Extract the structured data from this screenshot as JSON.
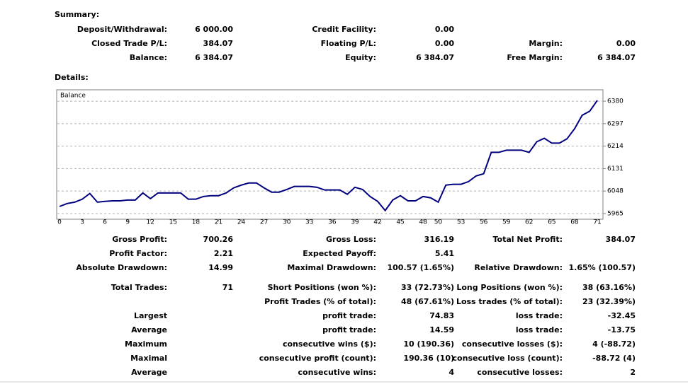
{
  "summary": {
    "title": "Summary:",
    "rows": [
      {
        "left": {
          "label": "Deposit/Withdrawal:",
          "value": "6 000.00"
        },
        "middle": {
          "label": "Credit Facility:",
          "value": "0.00"
        }
      },
      {
        "left": {
          "label": "Closed Trade P/L:",
          "value": "384.07"
        },
        "middle": {
          "label": "Floating P/L:",
          "value": "0.00"
        },
        "right": {
          "label": "Margin:",
          "value": "0.00"
        }
      },
      {
        "left": {
          "label": "Balance:",
          "value": "6 384.07"
        },
        "middle": {
          "label": "Equity:",
          "value": "6 384.07"
        },
        "right": {
          "label": "Free Margin:",
          "value": "6 384.07"
        }
      }
    ]
  },
  "details": {
    "title": "Details:",
    "rows": [
      {
        "left": {
          "label": "Gross Profit:",
          "value": "700.26"
        },
        "middle": {
          "label": "Gross Loss:",
          "value": "316.19"
        },
        "right": {
          "label": "Total Net Profit:",
          "value": "384.07"
        }
      },
      {
        "left": {
          "label": "Profit Factor:",
          "value": "2.21"
        },
        "middle": {
          "label": "Expected Payoff:",
          "value": "5.41"
        }
      },
      {
        "left": {
          "label": "Absolute Drawdown:",
          "value": "14.99"
        },
        "middle": {
          "label": "Maximal Drawdown:",
          "value": "100.57 (1.65%)"
        },
        "right": {
          "label": "Relative Drawdown:",
          "value": "1.65% (100.57)"
        }
      },
      {
        "left": {
          "label": "Total Trades:",
          "value": "71"
        },
        "middle": {
          "label": "Short Positions (won %):",
          "value": "33 (72.73%)"
        },
        "right": {
          "label": "Long Positions (won %):",
          "value": "38 (63.16%)"
        }
      },
      {
        "middle": {
          "label": "Profit Trades (% of total):",
          "value": "48 (67.61%)"
        },
        "right": {
          "label": "Loss trades (% of total):",
          "value": "23 (32.39%)"
        }
      },
      {
        "left": {
          "label": "Largest"
        },
        "middle": {
          "label": "profit trade:",
          "value": "74.83"
        },
        "right": {
          "label": "loss trade:",
          "value": "-32.45"
        }
      },
      {
        "left": {
          "label": "Average"
        },
        "middle": {
          "label": "profit trade:",
          "value": "14.59"
        },
        "right": {
          "label": "loss trade:",
          "value": "-13.75"
        }
      },
      {
        "left": {
          "label": "Maximum"
        },
        "middle": {
          "label": "consecutive wins ($):",
          "value": "10 (190.36)"
        },
        "right": {
          "label": "consecutive losses ($):",
          "value": "4 (-88.72)"
        }
      },
      {
        "left": {
          "label": "Maximal"
        },
        "middle": {
          "label": "consecutive profit (count):",
          "value": "190.36 (10)"
        },
        "right": {
          "label": "consecutive loss (count):",
          "value": "-88.72 (4)"
        }
      },
      {
        "left": {
          "label": "Average"
        },
        "middle": {
          "label": "consecutive wins:",
          "value": "4"
        },
        "right": {
          "label": "consecutive losses:",
          "value": "2"
        }
      }
    ]
  },
  "chart_data": {
    "type": "line",
    "x": [
      0,
      1,
      2,
      3,
      4,
      5,
      6,
      7,
      8,
      9,
      10,
      11,
      12,
      13,
      14,
      15,
      16,
      17,
      18,
      19,
      20,
      21,
      22,
      23,
      24,
      25,
      26,
      27,
      28,
      29,
      30,
      31,
      32,
      33,
      34,
      35,
      36,
      37,
      38,
      39,
      40,
      41,
      42,
      43,
      44,
      45,
      46,
      47,
      48,
      49,
      50,
      51,
      52,
      53,
      54,
      55,
      56,
      57,
      58,
      59,
      60,
      61,
      62,
      63,
      64,
      65,
      66,
      67,
      68,
      69,
      70,
      71
    ],
    "series": [
      {
        "name": "Balance",
        "color": "#00007f",
        "values": [
          5991,
          6002,
          6007,
          6018,
          6039,
          6007,
          6010,
          6012,
          6012,
          6015,
          6015,
          6041,
          6020,
          6041,
          6041,
          6041,
          6041,
          6018,
          6018,
          6028,
          6031,
          6031,
          6041,
          6060,
          6070,
          6078,
          6078,
          6060,
          6044,
          6044,
          6054,
          6065,
          6065,
          6065,
          6062,
          6052,
          6052,
          6052,
          6036,
          6062,
          6054,
          6028,
          6010,
          5976,
          6015,
          6031,
          6012,
          6012,
          6028,
          6023,
          6007,
          6070,
          6073,
          6073,
          6083,
          6104,
          6112,
          6191,
          6191,
          6199,
          6199,
          6199,
          6191,
          6230,
          6243,
          6225,
          6225,
          6241,
          6278,
          6328,
          6343,
          6383
        ]
      }
    ],
    "xlim": [
      0,
      71
    ],
    "xticks": [
      0,
      3,
      6,
      9,
      12,
      15,
      18,
      21,
      24,
      27,
      30,
      33,
      36,
      39,
      42,
      45,
      48,
      50,
      53,
      56,
      59,
      62,
      65,
      68,
      71
    ],
    "ylim": [
      5944,
      6422
    ],
    "yticks": [
      5965,
      6048,
      6131,
      6214,
      6297,
      6380
    ],
    "grid": true
  }
}
